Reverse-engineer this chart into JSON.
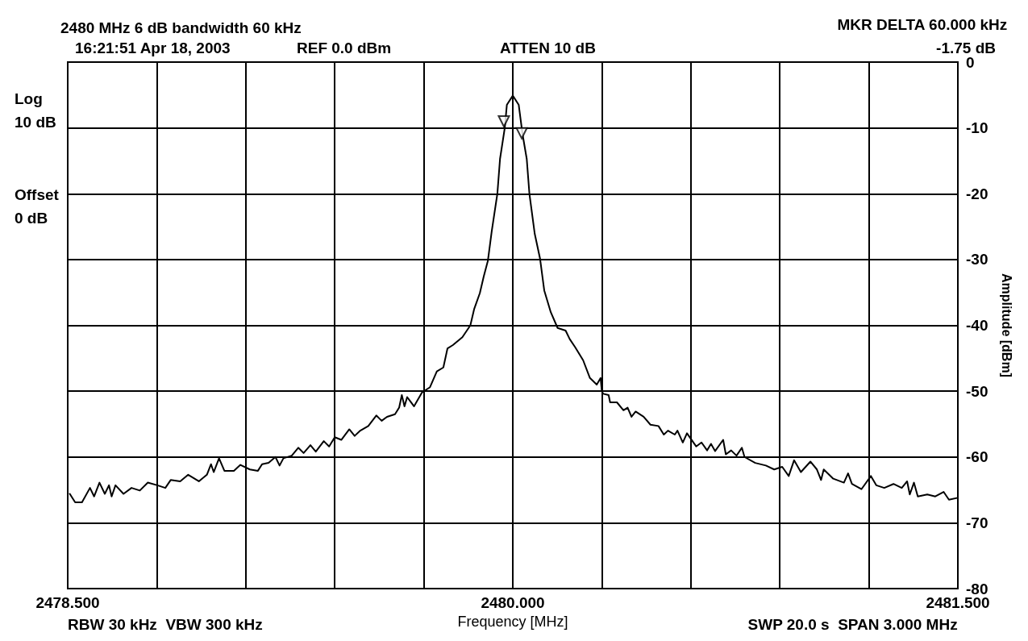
{
  "chart_data": {
    "type": "line",
    "title": "2480 MHz 6 dB bandwidth 60 kHz",
    "xlabel": "Frequency [MHz]",
    "ylabel": "Amplitude [dBm]",
    "annotations": [
      "16:21:51 Apr 18, 2003",
      "REF 0.0 dBm",
      "ATTEN 10 dB",
      "MKR DELTA 60.000 kHz",
      "-1.75 dB",
      "Log",
      "10 dB",
      "Offset",
      "0 dB",
      "RBW 30 kHz  VBW 300 kHz",
      "SWP 20.0 s  SPAN 3.000 MHz"
    ],
    "xlim": [
      2478.5,
      2481.5
    ],
    "xticks": [
      {
        "value": 2478.5,
        "label": "2478.500"
      },
      {
        "value": 2478.8,
        "label": null
      },
      {
        "value": 2479.1,
        "label": null
      },
      {
        "value": 2479.4,
        "label": null
      },
      {
        "value": 2479.7,
        "label": null
      },
      {
        "value": 2480,
        "label": "2480.000"
      },
      {
        "value": 2480.3,
        "label": null
      },
      {
        "value": 2480.6,
        "label": null
      },
      {
        "value": 2480.9,
        "label": null
      },
      {
        "value": 2481.2,
        "label": null
      },
      {
        "value": 2481.5,
        "label": "2481.500"
      }
    ],
    "ylim": [
      -80,
      0
    ],
    "yticks": [
      0,
      -10,
      -20,
      -30,
      -40,
      -50,
      -60,
      -70,
      -80
    ],
    "grid": true,
    "marker": "none",
    "line_style": "solid",
    "series": [
      {
        "color": "#000000",
        "x": [
          2478.507,
          2478.525,
          2478.548,
          2478.575,
          2478.589,
          2478.607,
          2478.625,
          2478.639,
          2478.648,
          2478.661,
          2478.688,
          2478.715,
          2478.743,
          2478.77,
          2478.802,
          2478.829,
          2478.847,
          2478.879,
          2478.906,
          2478.942,
          2478.969,
          2478.983,
          2478.992,
          2479.01,
          2479.028,
          2479.06,
          2479.082,
          2479.114,
          2479.141,
          2479.155,
          2479.177,
          2479.2,
          2479.214,
          2479.227,
          2479.255,
          2479.277,
          2479.295,
          2479.318,
          2479.336,
          2479.363,
          2479.381,
          2479.4,
          2479.422,
          2479.449,
          2479.467,
          2479.486,
          2479.513,
          2479.54,
          2479.558,
          2479.576,
          2479.603,
          2479.617,
          2479.626,
          2479.635,
          2479.644,
          2479.667,
          2479.694,
          2479.721,
          2479.744,
          2479.766,
          2479.78,
          2479.798,
          2479.83,
          2479.857,
          2479.87,
          2479.889,
          2479.902,
          2479.916,
          2479.929,
          2479.948,
          2479.957,
          2479.973,
          2479.98,
          2480,
          2480.02,
          2480.033,
          2480.047,
          2480.056,
          2480.074,
          2480.092,
          2480.106,
          2480.128,
          2480.151,
          2480.178,
          2480.192,
          2480.21,
          2480.237,
          2480.26,
          2480.283,
          2480.296,
          2480.3,
          2480.305,
          2480.323,
          2480.328,
          2480.351,
          2480.373,
          2480.387,
          2480.4,
          2480.414,
          2480.441,
          2480.464,
          2480.491,
          2480.509,
          2480.523,
          2480.546,
          2480.555,
          2480.573,
          2480.587,
          2480.618,
          2480.636,
          2480.655,
          2480.668,
          2480.682,
          2480.709,
          2480.718,
          2480.736,
          2480.754,
          2480.772,
          2480.781,
          2480.817,
          2480.853,
          2480.881,
          2480.908,
          2480.93,
          2480.948,
          2480.971,
          2481.003,
          2481.025,
          2481.039,
          2481.048,
          2481.08,
          2481.116,
          2481.13,
          2481.143,
          2481.175,
          2481.207,
          2481.225,
          2481.252,
          2481.283,
          2481.311,
          2481.329,
          2481.338,
          2481.352,
          2481.365,
          2481.397,
          2481.424,
          2481.452,
          2481.47,
          2481.5
        ],
        "values": [
          -65.6,
          -66.9,
          -66.9,
          -64.7,
          -66,
          -63.9,
          -65.6,
          -64.3,
          -66,
          -64.3,
          -65.6,
          -64.7,
          -65.1,
          -63.9,
          -64.3,
          -64.7,
          -63.5,
          -63.7,
          -62.7,
          -63.7,
          -62.7,
          -61.1,
          -62.3,
          -60.2,
          -62.1,
          -62.1,
          -61.2,
          -61.9,
          -62.1,
          -61.1,
          -60.9,
          -60,
          -61.3,
          -60.2,
          -59.8,
          -58.6,
          -59.4,
          -58.2,
          -59.2,
          -57.6,
          -58.4,
          -57,
          -57.4,
          -55.8,
          -56.8,
          -56,
          -55.3,
          -53.7,
          -54.5,
          -53.9,
          -53.5,
          -52.5,
          -50.6,
          -52.3,
          -50.9,
          -52.3,
          -50.2,
          -49.4,
          -47,
          -46.4,
          -43.5,
          -43,
          -41.8,
          -40,
          -37.5,
          -35.1,
          -32.6,
          -30.2,
          -25.7,
          -20,
          -14.7,
          -10,
          -6.5,
          -5.1,
          -6.5,
          -11,
          -14.7,
          -20,
          -26.1,
          -29.9,
          -34.7,
          -38,
          -40.4,
          -40.8,
          -42.1,
          -43.3,
          -45.3,
          -48,
          -49,
          -48,
          -50,
          -50.4,
          -50.6,
          -51.7,
          -51.7,
          -52.9,
          -52.5,
          -53.9,
          -53.1,
          -53.9,
          -55.1,
          -55.3,
          -56.6,
          -56,
          -56.6,
          -56,
          -57.8,
          -56.4,
          -58.4,
          -57.8,
          -59,
          -58,
          -59.1,
          -57.4,
          -59.6,
          -59,
          -59.8,
          -58.6,
          -60,
          -60.9,
          -61.3,
          -61.9,
          -61.5,
          -62.9,
          -60.5,
          -62.3,
          -60.7,
          -61.9,
          -63.5,
          -61.9,
          -63.3,
          -63.9,
          -62.5,
          -64.1,
          -64.9,
          -62.9,
          -64.3,
          -64.7,
          -64.1,
          -64.7,
          -63.7,
          -65.7,
          -63.9,
          -66,
          -65.7,
          -66,
          -65.3,
          -66.5,
          -66.2
        ]
      },
      {
        "type": "scatter",
        "marker": "triangle",
        "color": "#000000",
        "x": [
          2479.97,
          2480.03
        ],
        "values": [
          -9,
          -10.8
        ]
      }
    ]
  }
}
